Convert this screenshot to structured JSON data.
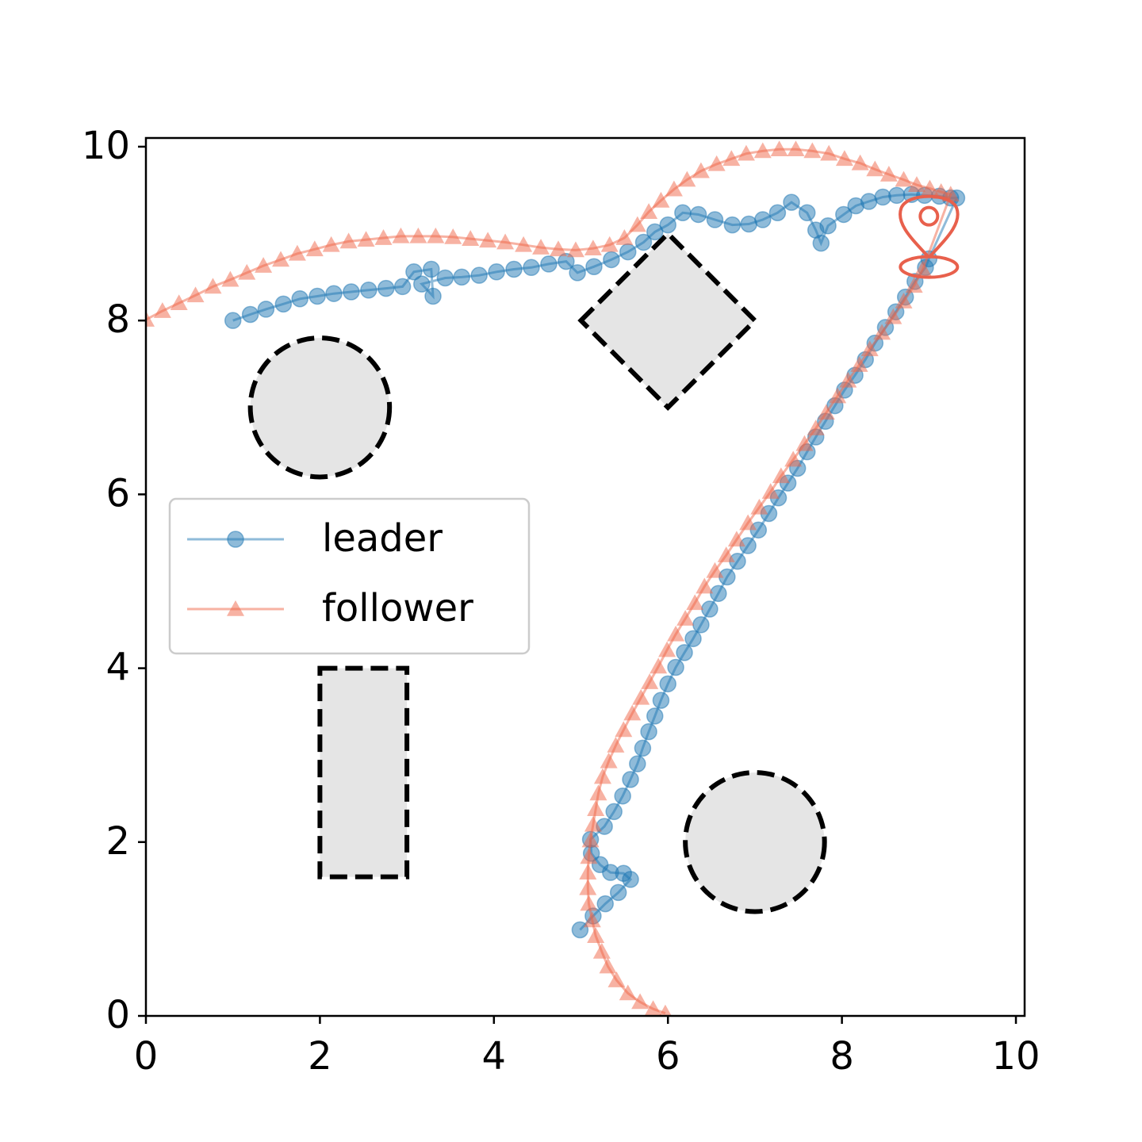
{
  "chart_data": {
    "type": "trajectory",
    "xlim": [
      0,
      10.1
    ],
    "ylim": [
      0,
      10.1
    ],
    "xticks": [
      0,
      2,
      4,
      6,
      8,
      10
    ],
    "yticks": [
      0,
      2,
      4,
      6,
      8,
      10
    ],
    "legend": "center left",
    "obstacles": [
      {
        "shape": "circle",
        "x": 2,
        "y": 7,
        "r": 0.8
      },
      {
        "shape": "polygon",
        "x": [
          5,
          6,
          7,
          6
        ],
        "y": [
          8,
          9,
          8,
          7
        ]
      },
      {
        "shape": "rect",
        "x": 2,
        "y": 1.6,
        "width": 1,
        "height": 2.4
      },
      {
        "shape": "circle",
        "x": 7,
        "y": 2,
        "r": 0.8
      }
    ],
    "goal": {
      "x": 9,
      "y": 9.2,
      "color": "#e8604c"
    },
    "series": [
      {
        "name": "leader",
        "color": "#1f77b4",
        "marker": "circle",
        "x": [
          1.0,
          1.2,
          1.38,
          1.58,
          1.77,
          1.97,
          2.16,
          2.36,
          2.56,
          2.76,
          2.95,
          3.08,
          3.28,
          3.3,
          3.17,
          3.44,
          3.63,
          3.83,
          4.03,
          4.23,
          4.43,
          4.63,
          4.83,
          4.96,
          5.15,
          5.35,
          5.54,
          5.72,
          5.85,
          6.0,
          6.17,
          6.35,
          6.54,
          6.74,
          6.93,
          7.09,
          7.26,
          7.42,
          7.6,
          7.7,
          7.76,
          7.84,
          8.02,
          8.16,
          8.31,
          8.47,
          8.63,
          8.8,
          8.95,
          9.12,
          9.25,
          9.32,
          9.0,
          8.96,
          8.84,
          8.73,
          8.62,
          8.5,
          8.38,
          8.27,
          8.15,
          8.03,
          7.92,
          7.81,
          7.7,
          7.6,
          7.49,
          7.38,
          7.27,
          7.16,
          7.04,
          6.92,
          6.8,
          6.68,
          6.58,
          6.48,
          6.38,
          6.29,
          6.19,
          6.09,
          6.0,
          5.92,
          5.85,
          5.78,
          5.71,
          5.65,
          5.57,
          5.48,
          5.38,
          5.27,
          5.11,
          5.12,
          5.22,
          5.34,
          5.49,
          5.57,
          5.43,
          5.28,
          5.14,
          4.99
        ],
        "y": [
          8.0,
          8.07,
          8.13,
          8.19,
          8.25,
          8.28,
          8.31,
          8.33,
          8.35,
          8.37,
          8.39,
          8.56,
          8.59,
          8.28,
          8.42,
          8.49,
          8.5,
          8.52,
          8.56,
          8.59,
          8.61,
          8.65,
          8.68,
          8.55,
          8.62,
          8.7,
          8.79,
          8.9,
          9.02,
          9.1,
          9.24,
          9.22,
          9.16,
          9.1,
          9.11,
          9.16,
          9.24,
          9.36,
          9.24,
          9.04,
          8.89,
          9.09,
          9.22,
          9.32,
          9.37,
          9.42,
          9.44,
          9.45,
          9.44,
          9.43,
          9.41,
          9.41,
          8.71,
          8.61,
          8.45,
          8.27,
          8.1,
          7.92,
          7.74,
          7.55,
          7.37,
          7.2,
          7.02,
          6.84,
          6.66,
          6.49,
          6.3,
          6.13,
          5.96,
          5.78,
          5.59,
          5.41,
          5.23,
          5.05,
          4.86,
          4.68,
          4.5,
          4.34,
          4.18,
          4.01,
          3.82,
          3.63,
          3.45,
          3.27,
          3.08,
          2.9,
          2.72,
          2.53,
          2.35,
          2.18,
          2.03,
          1.87,
          1.74,
          1.65,
          1.64,
          1.57,
          1.42,
          1.29,
          1.15,
          0.99
        ]
      },
      {
        "name": "follower",
        "color": "#ef6548",
        "marker": "triangle",
        "x": [
          0,
          0.19,
          0.38,
          0.57,
          0.77,
          0.97,
          1.16,
          1.35,
          1.55,
          1.74,
          1.94,
          2.13,
          2.33,
          2.53,
          2.73,
          2.93,
          3.13,
          3.33,
          3.53,
          3.73,
          3.93,
          4.13,
          4.34,
          4.54,
          4.74,
          4.94,
          5.14,
          5.33,
          5.5,
          5.65,
          5.78,
          5.92,
          6.07,
          6.22,
          6.38,
          6.56,
          6.73,
          6.9,
          7.09,
          7.28,
          7.47,
          7.66,
          7.85,
          8.03,
          8.21,
          8.38,
          8.54,
          8.71,
          8.86,
          9.01,
          9.14,
          9.25,
          8.93,
          8.83,
          8.71,
          8.59,
          8.46,
          8.32,
          8.2,
          8.07,
          7.95,
          7.82,
          7.7,
          7.57,
          7.44,
          7.3,
          7.18,
          7.05,
          6.92,
          6.79,
          6.67,
          6.54,
          6.42,
          6.31,
          6.2,
          6.09,
          5.99,
          5.89,
          5.79,
          5.69,
          5.59,
          5.49,
          5.4,
          5.32,
          5.25,
          5.2,
          5.17,
          5.14,
          5.11,
          5.09,
          5.08,
          5.08,
          5.09,
          5.13,
          5.17,
          5.24,
          5.31,
          5.41,
          5.54,
          5.68,
          5.83,
          5.97
        ],
        "y": [
          8.01,
          8.11,
          8.2,
          8.29,
          8.39,
          8.47,
          8.55,
          8.63,
          8.7,
          8.77,
          8.82,
          8.87,
          8.91,
          8.93,
          8.95,
          8.97,
          8.97,
          8.97,
          8.96,
          8.94,
          8.92,
          8.9,
          8.87,
          8.84,
          8.82,
          8.81,
          8.83,
          8.87,
          8.95,
          9.1,
          9.25,
          9.38,
          9.51,
          9.62,
          9.72,
          9.8,
          9.86,
          9.92,
          9.95,
          9.97,
          9.97,
          9.95,
          9.92,
          9.86,
          9.81,
          9.74,
          9.68,
          9.62,
          9.56,
          9.52,
          9.48,
          9.45,
          8.59,
          8.4,
          8.22,
          8.04,
          7.86,
          7.67,
          7.49,
          7.31,
          7.13,
          6.94,
          6.76,
          6.58,
          6.4,
          6.21,
          6.03,
          5.85,
          5.67,
          5.48,
          5.3,
          5.12,
          4.94,
          4.75,
          4.57,
          4.39,
          4.21,
          4.02,
          3.84,
          3.66,
          3.48,
          3.29,
          3.11,
          2.93,
          2.75,
          2.56,
          2.38,
          2.2,
          2.02,
          1.83,
          1.65,
          1.47,
          1.29,
          1.1,
          0.92,
          0.74,
          0.57,
          0.41,
          0.26,
          0.16,
          0.08,
          0.03
        ]
      }
    ]
  }
}
